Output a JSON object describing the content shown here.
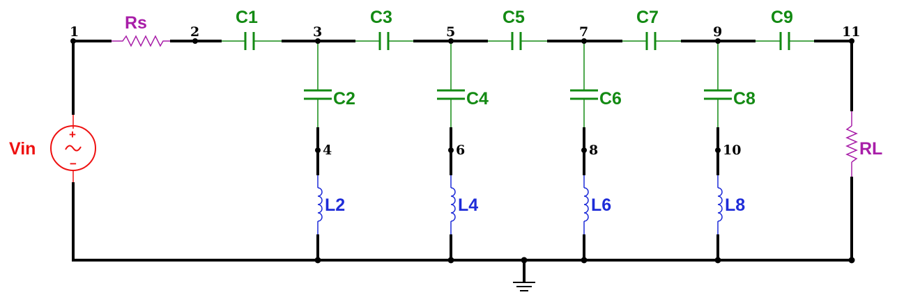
{
  "colors": {
    "wire": "#000000",
    "capacitor": "#138a13",
    "inductor": "#1e2cd8",
    "resistor": "#a81ea8",
    "source": "#ee1111"
  },
  "nodes": [
    "1",
    "2",
    "3",
    "4",
    "5",
    "6",
    "7",
    "8",
    "9",
    "10",
    "11"
  ],
  "components": {
    "source": "Vin",
    "source_plus": "+",
    "source_minus": "−",
    "rs": "Rs",
    "rl": "RL",
    "series_caps": [
      "C1",
      "C3",
      "C5",
      "C7",
      "C9"
    ],
    "shunt_caps": [
      "C2",
      "C4",
      "C6",
      "C8"
    ],
    "inductors": [
      "L2",
      "L4",
      "L6",
      "L8"
    ]
  }
}
